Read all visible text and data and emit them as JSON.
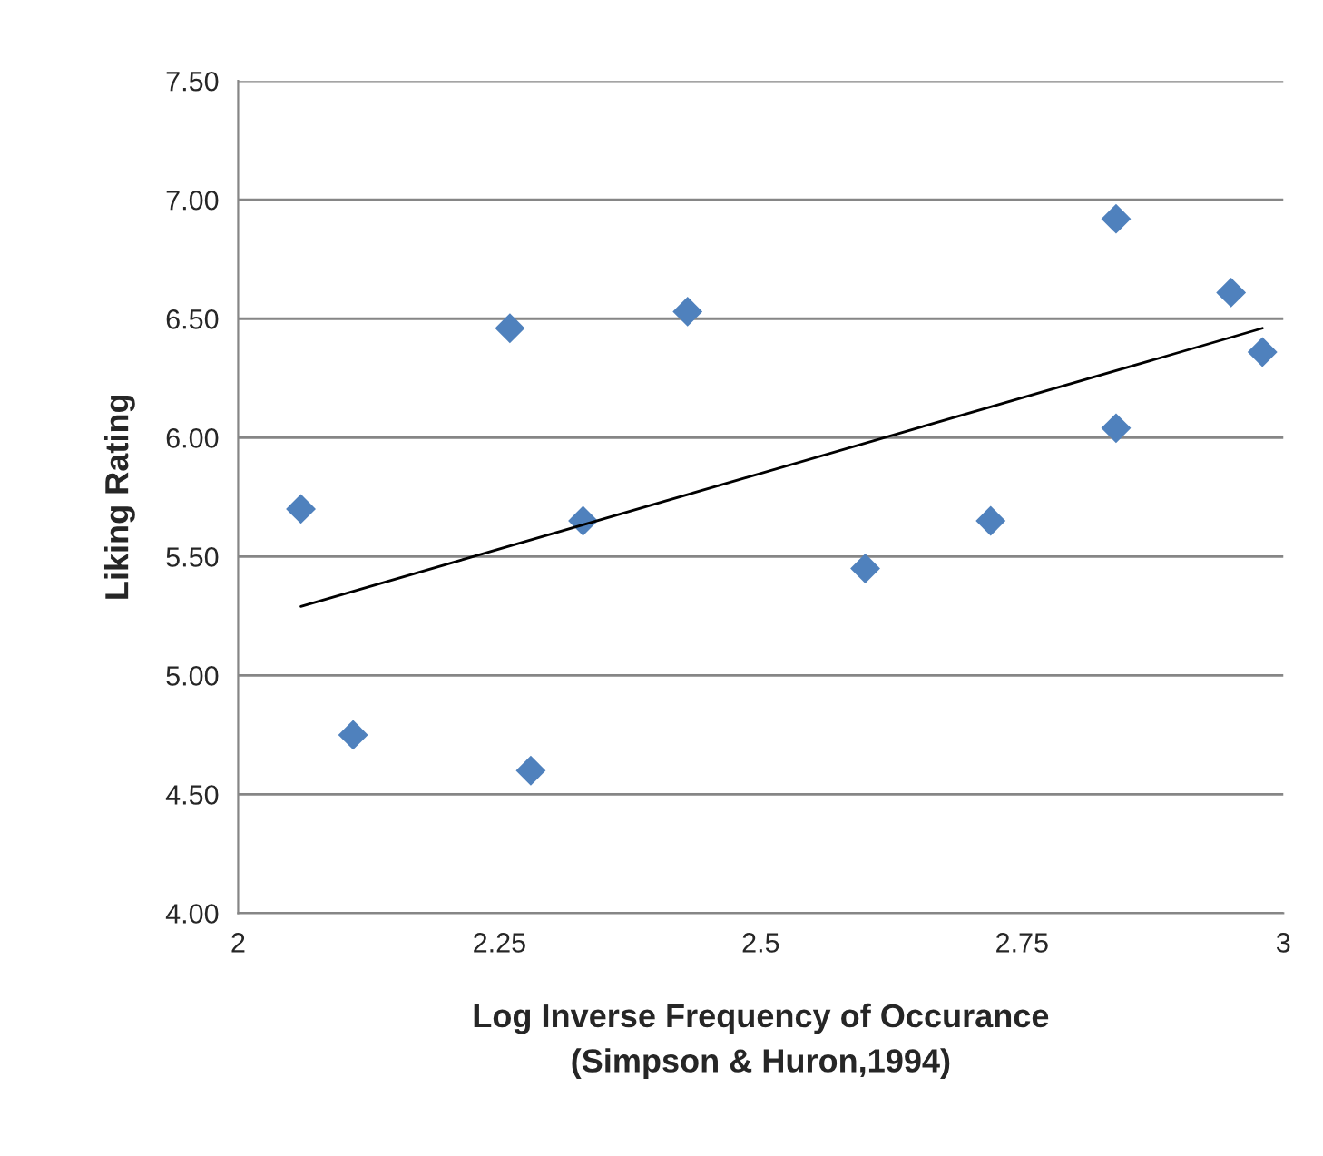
{
  "chart_data": {
    "type": "scatter",
    "xlabel": "Log Inverse Frequency of Occurance\n(Simpson & Huron,1994)",
    "ylabel": "Liking Rating",
    "xlim": [
      2,
      3
    ],
    "ylim": [
      4,
      7.5
    ],
    "xticks": [
      2,
      2.25,
      2.5,
      2.75,
      3
    ],
    "yticks": [
      {
        "value": 4,
        "label": "4.00"
      },
      {
        "value": 4.5,
        "label": "4.50"
      },
      {
        "value": 5,
        "label": "5.00"
      },
      {
        "value": 5.5,
        "label": "5.50"
      },
      {
        "value": 6,
        "label": "6.00"
      },
      {
        "value": 6.5,
        "label": "6.50"
      },
      {
        "value": 7,
        "label": "7.00"
      },
      {
        "value": 7.5,
        "label": "7.50"
      }
    ],
    "grid": "y",
    "series": [
      {
        "marker": "diamond",
        "color": "#4f81bd",
        "x": [
          2.06,
          2.11,
          2.26,
          2.28,
          2.33,
          2.43,
          2.6,
          2.72,
          2.84,
          2.84,
          2.95,
          2.98
        ],
        "values": [
          5.7,
          4.75,
          6.46,
          4.6,
          5.65,
          6.53,
          5.45,
          5.65,
          6.92,
          6.04,
          6.61,
          6.36
        ]
      },
      {
        "type": "line",
        "marker": "none",
        "color": "#000000",
        "x": [
          2.06,
          2.98
        ],
        "values": [
          5.29,
          6.46
        ]
      }
    ]
  }
}
